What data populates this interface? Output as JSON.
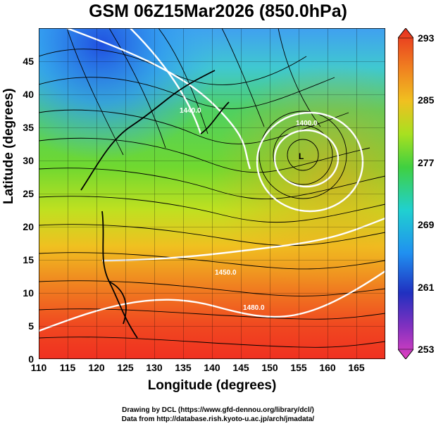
{
  "title": "GSM 06Z15Mar2026 (850.0hPa)",
  "x_axis": {
    "label": "Longitude (degrees)",
    "ticks": [
      "110",
      "115",
      "120",
      "125",
      "130",
      "135",
      "140",
      "145",
      "150",
      "155",
      "160",
      "165"
    ],
    "range": [
      110,
      170
    ]
  },
  "y_axis": {
    "label": "Latitude  (degrees)",
    "ticks": [
      "0",
      "5",
      "10",
      "15",
      "20",
      "25",
      "30",
      "35",
      "40",
      "45"
    ],
    "range": [
      0,
      50
    ]
  },
  "colorbar": {
    "ticks": [
      "293",
      "285",
      "277",
      "269",
      "261",
      "253"
    ],
    "range": [
      253,
      293
    ],
    "colors": [
      "#e040c0",
      "#3020c0",
      "#2090f0",
      "#20d0d0",
      "#40d040",
      "#a0e020",
      "#f0c020",
      "#f08020",
      "#e03020"
    ]
  },
  "contour_labels": [
    "1440.0",
    "1400.0",
    "1450.0",
    "1460.0",
    "1460.0",
    "1480.0"
  ],
  "low_marker": "L",
  "credits": {
    "line1": "Drawing by DCL (https://www.gfd-dennou.org/library/dcl/)",
    "line2": "Data from http://database.rish.kyoto-u.ac.jp/arch/jmadata/"
  }
}
